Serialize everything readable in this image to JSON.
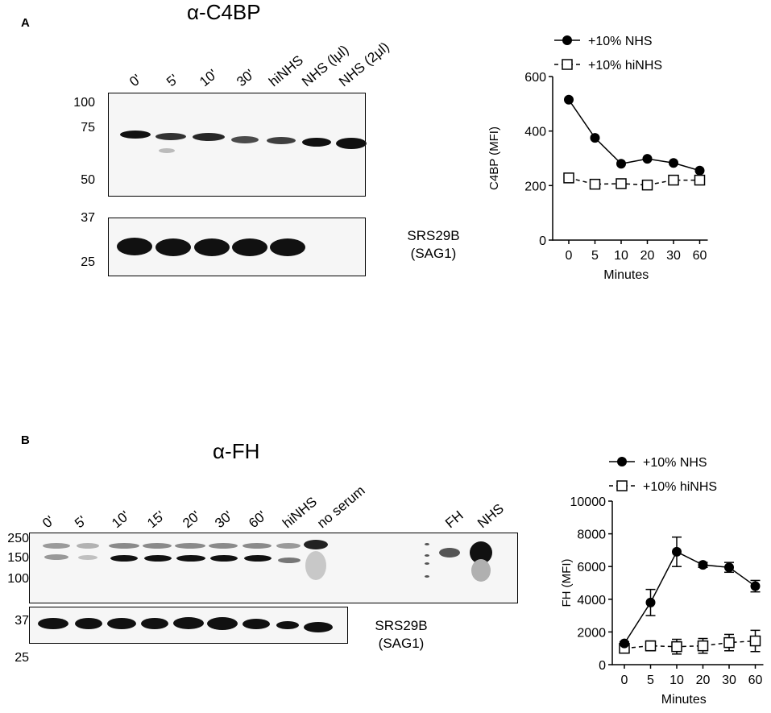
{
  "panel_a": {
    "letter": "A",
    "antibody": "α-C4BP",
    "lanes": [
      "0'",
      "5'",
      "10'",
      "30'",
      "hiNHS",
      "NHS (lμl)",
      "NHS (2μl)"
    ],
    "mw_top": [
      "100",
      "75",
      "50"
    ],
    "mw_bottom": [
      "37",
      "25"
    ],
    "loading_label": [
      "SRS29B",
      "(SAG1)"
    ]
  },
  "panel_b": {
    "letter": "B",
    "antibody": "α-FH",
    "lanes": [
      "0'",
      "5'",
      "10'",
      "15'",
      "20'",
      "30'",
      "60'",
      "hiNHS",
      "no serum",
      "FH",
      "NHS"
    ],
    "mw_top": [
      "250",
      "150",
      "100"
    ],
    "mw_bottom": [
      "37",
      "25"
    ],
    "loading_label": [
      "SRS29B",
      "(SAG1)"
    ]
  },
  "chart_data": [
    {
      "type": "line",
      "x": [
        "0",
        "5",
        "10",
        "20",
        "30",
        "60"
      ],
      "xlabel": "Minutes",
      "ylabel": "C4BP (MFI)",
      "ylim": [
        0,
        600
      ],
      "yticks": [
        "0",
        "200",
        "400",
        "600"
      ],
      "legend_placement": "top",
      "series": [
        {
          "name": "+10% NHS",
          "marker": "filled-circle",
          "line": "solid",
          "values": [
            515,
            375,
            280,
            298,
            283,
            255
          ],
          "err": [
            0,
            0,
            0,
            0,
            0,
            0
          ]
        },
        {
          "name": "+10% hiNHS",
          "marker": "open-square",
          "line": "dashed",
          "values": [
            228,
            205,
            207,
            202,
            220,
            220
          ],
          "err": [
            0,
            0,
            0,
            0,
            0,
            0
          ]
        }
      ]
    },
    {
      "type": "line",
      "x": [
        "0",
        "5",
        "10",
        "20",
        "30",
        "60"
      ],
      "xlabel": "Minutes",
      "ylabel": "FH (MFI)",
      "ylim": [
        0,
        10000
      ],
      "yticks": [
        "0",
        "2000",
        "4000",
        "6000",
        "8000",
        "10000"
      ],
      "legend_placement": "top",
      "series": [
        {
          "name": "+10% NHS",
          "marker": "filled-circle",
          "line": "solid",
          "values": [
            1300,
            3800,
            6900,
            6100,
            5950,
            4800
          ],
          "err": [
            100,
            800,
            900,
            150,
            300,
            350
          ]
        },
        {
          "name": "+10% hiNHS",
          "marker": "open-square",
          "line": "dashed",
          "values": [
            1000,
            1150,
            1100,
            1150,
            1350,
            1450
          ],
          "err": [
            150,
            300,
            450,
            450,
            500,
            650
          ]
        }
      ]
    }
  ]
}
